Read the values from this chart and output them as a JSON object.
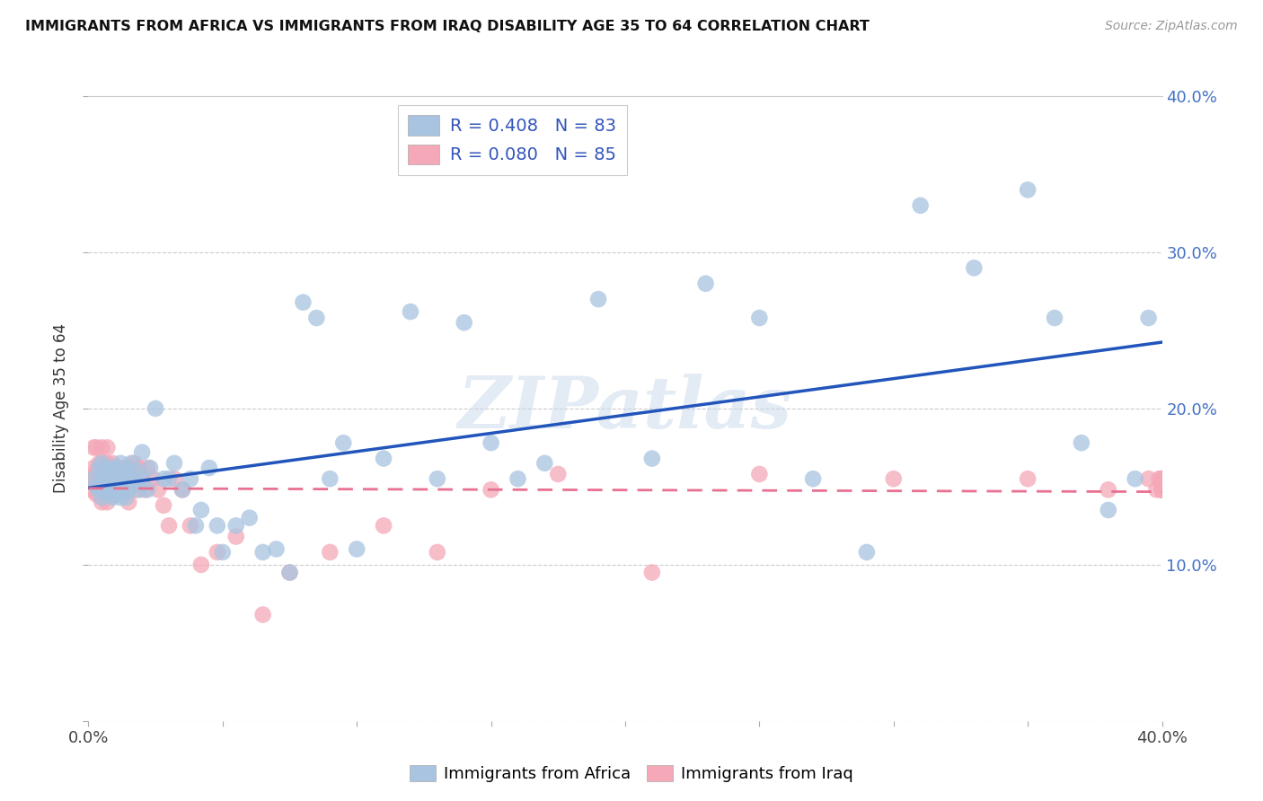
{
  "title": "IMMIGRANTS FROM AFRICA VS IMMIGRANTS FROM IRAQ DISABILITY AGE 35 TO 64 CORRELATION CHART",
  "source": "Source: ZipAtlas.com",
  "ylabel": "Disability Age 35 to 64",
  "xlim": [
    0.0,
    0.4
  ],
  "ylim": [
    0.0,
    0.4
  ],
  "africa_R": 0.408,
  "africa_N": 83,
  "iraq_R": 0.08,
  "iraq_N": 85,
  "africa_color": "#a8c4e0",
  "iraq_color": "#f4a8b8",
  "africa_line_color": "#2255bb",
  "iraq_line_color": "#e87090",
  "legend_label_africa": "Immigrants from Africa",
  "legend_label_iraq": "Immigrants from Iraq",
  "watermark": "ZIPatlas",
  "africa_x": [
    0.002,
    0.003,
    0.004,
    0.004,
    0.005,
    0.005,
    0.005,
    0.006,
    0.006,
    0.007,
    0.007,
    0.007,
    0.008,
    0.008,
    0.008,
    0.009,
    0.009,
    0.009,
    0.01,
    0.01,
    0.01,
    0.011,
    0.011,
    0.012,
    0.012,
    0.012,
    0.013,
    0.013,
    0.014,
    0.014,
    0.015,
    0.015,
    0.016,
    0.016,
    0.017,
    0.018,
    0.019,
    0.02,
    0.02,
    0.022,
    0.023,
    0.025,
    0.028,
    0.03,
    0.032,
    0.035,
    0.038,
    0.04,
    0.042,
    0.045,
    0.048,
    0.05,
    0.055,
    0.06,
    0.065,
    0.07,
    0.075,
    0.08,
    0.085,
    0.09,
    0.095,
    0.1,
    0.11,
    0.12,
    0.13,
    0.14,
    0.15,
    0.16,
    0.17,
    0.19,
    0.21,
    0.23,
    0.25,
    0.27,
    0.29,
    0.31,
    0.33,
    0.35,
    0.36,
    0.37,
    0.38,
    0.39,
    0.395
  ],
  "africa_y": [
    0.155,
    0.15,
    0.148,
    0.162,
    0.143,
    0.158,
    0.165,
    0.152,
    0.148,
    0.145,
    0.16,
    0.155,
    0.148,
    0.155,
    0.162,
    0.143,
    0.15,
    0.158,
    0.145,
    0.152,
    0.162,
    0.148,
    0.158,
    0.143,
    0.15,
    0.165,
    0.148,
    0.155,
    0.143,
    0.162,
    0.148,
    0.158,
    0.152,
    0.165,
    0.155,
    0.16,
    0.148,
    0.155,
    0.172,
    0.148,
    0.162,
    0.2,
    0.155,
    0.155,
    0.165,
    0.148,
    0.155,
    0.125,
    0.135,
    0.162,
    0.125,
    0.108,
    0.125,
    0.13,
    0.108,
    0.11,
    0.095,
    0.268,
    0.258,
    0.155,
    0.178,
    0.11,
    0.168,
    0.262,
    0.155,
    0.255,
    0.178,
    0.155,
    0.165,
    0.27,
    0.168,
    0.28,
    0.258,
    0.155,
    0.108,
    0.33,
    0.29,
    0.34,
    0.258,
    0.178,
    0.135,
    0.155,
    0.258
  ],
  "iraq_x": [
    0.001,
    0.001,
    0.002,
    0.002,
    0.002,
    0.003,
    0.003,
    0.003,
    0.003,
    0.004,
    0.004,
    0.004,
    0.004,
    0.005,
    0.005,
    0.005,
    0.005,
    0.006,
    0.006,
    0.006,
    0.006,
    0.007,
    0.007,
    0.007,
    0.007,
    0.008,
    0.008,
    0.008,
    0.009,
    0.009,
    0.009,
    0.01,
    0.01,
    0.01,
    0.011,
    0.011,
    0.012,
    0.012,
    0.013,
    0.013,
    0.014,
    0.015,
    0.015,
    0.016,
    0.017,
    0.018,
    0.019,
    0.02,
    0.021,
    0.022,
    0.024,
    0.026,
    0.028,
    0.03,
    0.032,
    0.035,
    0.038,
    0.042,
    0.048,
    0.055,
    0.065,
    0.075,
    0.09,
    0.11,
    0.13,
    0.15,
    0.175,
    0.21,
    0.25,
    0.3,
    0.35,
    0.38,
    0.395,
    0.398,
    0.399,
    0.4,
    0.4,
    0.4,
    0.4,
    0.4,
    0.4,
    0.4,
    0.4,
    0.4,
    0.4
  ],
  "iraq_y": [
    0.148,
    0.155,
    0.155,
    0.162,
    0.175,
    0.145,
    0.16,
    0.155,
    0.175,
    0.148,
    0.158,
    0.165,
    0.145,
    0.14,
    0.158,
    0.165,
    0.175,
    0.148,
    0.155,
    0.162,
    0.145,
    0.14,
    0.158,
    0.165,
    0.175,
    0.148,
    0.155,
    0.162,
    0.145,
    0.158,
    0.165,
    0.148,
    0.155,
    0.162,
    0.145,
    0.158,
    0.148,
    0.162,
    0.145,
    0.158,
    0.155,
    0.14,
    0.162,
    0.155,
    0.165,
    0.148,
    0.162,
    0.155,
    0.148,
    0.162,
    0.155,
    0.148,
    0.138,
    0.125,
    0.155,
    0.148,
    0.125,
    0.1,
    0.108,
    0.118,
    0.068,
    0.095,
    0.108,
    0.125,
    0.108,
    0.148,
    0.158,
    0.095,
    0.158,
    0.155,
    0.155,
    0.148,
    0.155,
    0.148,
    0.155,
    0.148,
    0.155,
    0.148,
    0.155,
    0.148,
    0.155,
    0.148,
    0.155,
    0.148,
    0.155
  ]
}
